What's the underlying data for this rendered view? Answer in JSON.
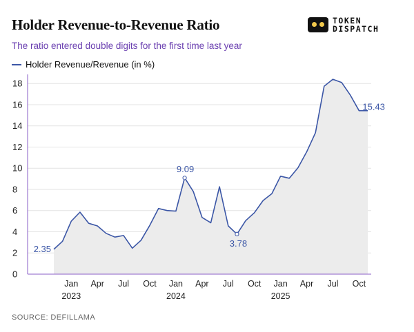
{
  "header": {
    "title": "Holder Revenue-to-Revenue Ratio",
    "subtitle": "The ratio entered double digits for the first time last year"
  },
  "logo": {
    "line1": "TOKEN",
    "line2": "DISPATCH"
  },
  "source": "SOURCE: DEFILLAMA",
  "colors": {
    "line": "#3b56a6",
    "area": "#ececec",
    "grid": "#e3e3e3",
    "axis": "#8a5cc7",
    "subtitle": "#6a3fb0"
  },
  "chart_data": {
    "type": "area",
    "series": [
      {
        "name": "Holder Revenue/Revenue (in %)",
        "x": [
          "2022-11",
          "2022-12",
          "2023-01",
          "2023-02",
          "2023-03",
          "2023-04",
          "2023-05",
          "2023-06",
          "2023-07",
          "2023-08",
          "2023-09",
          "2023-10",
          "2023-11",
          "2023-12",
          "2024-01",
          "2024-02",
          "2024-03",
          "2024-04",
          "2024-05",
          "2024-06",
          "2024-07",
          "2024-08",
          "2024-09",
          "2024-10",
          "2024-11",
          "2024-12",
          "2025-01",
          "2025-02",
          "2025-03",
          "2025-04",
          "2025-05",
          "2025-06",
          "2025-07",
          "2025-08",
          "2025-09",
          "2025-10",
          "2025-11"
        ],
        "values": [
          2.35,
          3.1,
          5.0,
          5.85,
          4.8,
          4.55,
          3.85,
          3.5,
          3.65,
          2.45,
          3.2,
          4.6,
          6.2,
          6.0,
          5.95,
          9.09,
          7.8,
          5.35,
          4.85,
          8.25,
          4.55,
          3.78,
          5.05,
          5.8,
          6.95,
          7.6,
          9.25,
          9.05,
          10.05,
          11.55,
          13.35,
          17.75,
          18.4,
          18.1,
          16.9,
          15.43,
          15.43
        ]
      }
    ],
    "ylim": [
      0,
      18.6
    ],
    "yticks": [
      0,
      2,
      4,
      6,
      8,
      10,
      12,
      14,
      16,
      18
    ],
    "xticks": [
      {
        "x": "2023-01",
        "label": "Jan",
        "year": "2023"
      },
      {
        "x": "2023-04",
        "label": "Apr",
        "year": ""
      },
      {
        "x": "2023-07",
        "label": "Jul",
        "year": ""
      },
      {
        "x": "2023-10",
        "label": "Oct",
        "year": ""
      },
      {
        "x": "2024-01",
        "label": "Jan",
        "year": "2024"
      },
      {
        "x": "2024-04",
        "label": "Apr",
        "year": ""
      },
      {
        "x": "2024-07",
        "label": "Jul",
        "year": ""
      },
      {
        "x": "2024-10",
        "label": "Oct",
        "year": ""
      },
      {
        "x": "2025-01",
        "label": "Jan",
        "year": "2025"
      },
      {
        "x": "2025-04",
        "label": "Apr",
        "year": ""
      },
      {
        "x": "2025-07",
        "label": "Jul",
        "year": ""
      },
      {
        "x": "2025-10",
        "label": "Oct",
        "year": ""
      }
    ],
    "annotations": [
      {
        "x": "2022-11",
        "value": 2.35,
        "label": "2.35",
        "marker": false
      },
      {
        "x": "2024-02",
        "value": 9.09,
        "label": "9.09",
        "marker": true
      },
      {
        "x": "2024-08",
        "value": 3.78,
        "label": "3.78",
        "marker": true
      },
      {
        "x": "2025-10",
        "value": 15.43,
        "label": "15.43",
        "marker": false
      }
    ],
    "grid": true,
    "legend": "top-left"
  }
}
